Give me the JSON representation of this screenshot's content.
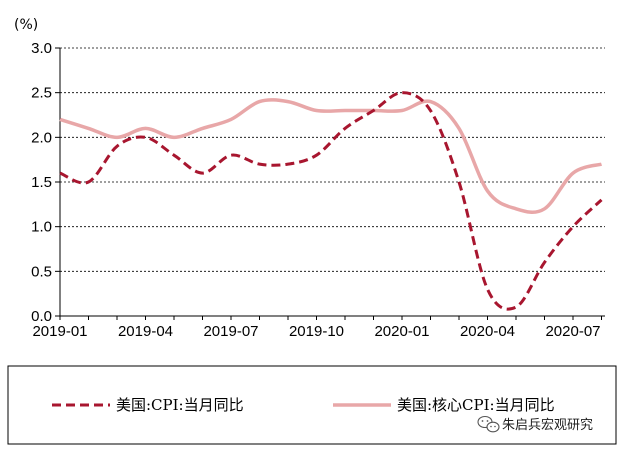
{
  "chart_data": {
    "type": "line",
    "unit": "(%)",
    "ylim": [
      0,
      3.0
    ],
    "y_ticks": [
      "0.0",
      "0.5",
      "1.0",
      "1.5",
      "2.0",
      "2.5",
      "3.0"
    ],
    "x_ticks": [
      "2019-01",
      "2019-04",
      "2019-07",
      "2019-10",
      "2020-01",
      "2020-04",
      "2020-07"
    ],
    "x": [
      "2019-01",
      "2019-02",
      "2019-03",
      "2019-04",
      "2019-05",
      "2019-06",
      "2019-07",
      "2019-08",
      "2019-09",
      "2019-10",
      "2019-11",
      "2019-12",
      "2020-01",
      "2020-02",
      "2020-03",
      "2020-04",
      "2020-05",
      "2020-06",
      "2020-07",
      "2020-08"
    ],
    "grid": true,
    "legend_position": "bottom",
    "series": [
      {
        "name": "美国:CPI:当月同比",
        "style": "dashed",
        "color": "#a8162f",
        "values": [
          1.6,
          1.5,
          1.9,
          2.0,
          1.8,
          1.6,
          1.8,
          1.7,
          1.7,
          1.8,
          2.1,
          2.3,
          2.5,
          2.3,
          1.5,
          0.3,
          0.1,
          0.6,
          1.0,
          1.3
        ]
      },
      {
        "name": "美国:核心CPI:当月同比",
        "style": "solid",
        "color": "#e8a7a8",
        "values": [
          2.2,
          2.1,
          2.0,
          2.1,
          2.0,
          2.1,
          2.2,
          2.4,
          2.4,
          2.3,
          2.3,
          2.3,
          2.3,
          2.4,
          2.1,
          1.4,
          1.2,
          1.2,
          1.6,
          1.7
        ]
      }
    ]
  },
  "watermark": {
    "text": "朱启兵宏观研究",
    "icon": "wechat-icon"
  }
}
